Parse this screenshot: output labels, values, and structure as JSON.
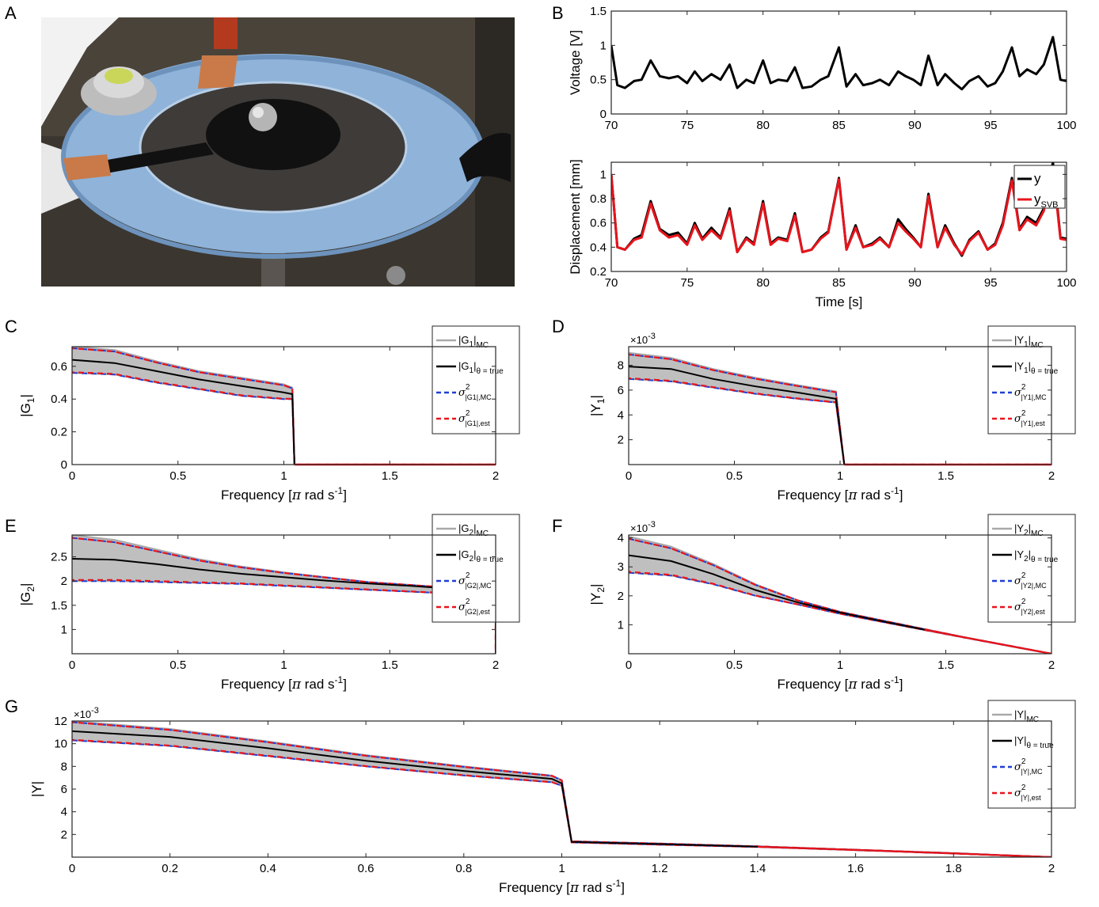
{
  "panel_letters": [
    "A",
    "B",
    "C",
    "D",
    "E",
    "F",
    "G"
  ],
  "photo": {
    "description_icon": "photo-of-ring-sensor-icon",
    "colors": {
      "ring": "#8fb3d9",
      "ink": "#111111",
      "copper": "#c97a48"
    }
  },
  "colors": {
    "measured": "#000000",
    "svb": "#e8141c",
    "mc_band": "#a9a9a9",
    "mc_dash": "#1f3fd6",
    "est_dash": "#e8141c",
    "fill": "#bfbfbf"
  },
  "chart_data": [
    {
      "id": "B-top",
      "type": "line",
      "ylabel": "Voltage [V]",
      "xlabel": "",
      "xlim": [
        70,
        100
      ],
      "ylim": [
        0,
        1.5
      ],
      "xticks": [
        "70",
        "75",
        "80",
        "85",
        "90",
        "95",
        "100"
      ],
      "yticks": [
        "0",
        "0.5",
        "1",
        "1.5"
      ],
      "series": [
        {
          "x": [
            70,
            70.4,
            70.9,
            71.5,
            72.0,
            72.6,
            73.2,
            73.8,
            74.4,
            75.0,
            75.5,
            76.0,
            76.6,
            77.2,
            77.8,
            78.3,
            78.9,
            79.4,
            80.0,
            80.5,
            81.0,
            81.6,
            82.1,
            82.6,
            83.2,
            83.8,
            84.3,
            85.0,
            85.5,
            86.1,
            86.6,
            87.2,
            87.7,
            88.3,
            88.9,
            89.4,
            89.9,
            90.4,
            90.9,
            91.5,
            92.0,
            92.6,
            93.1,
            93.6,
            94.2,
            94.8,
            95.3,
            95.8,
            96.4,
            96.9,
            97.4,
            98.0,
            98.5,
            99.1,
            99.6,
            100
          ],
          "y": [
            1.0,
            0.42,
            0.38,
            0.48,
            0.5,
            0.78,
            0.55,
            0.52,
            0.55,
            0.45,
            0.62,
            0.48,
            0.58,
            0.5,
            0.72,
            0.38,
            0.5,
            0.45,
            0.78,
            0.45,
            0.5,
            0.48,
            0.68,
            0.38,
            0.4,
            0.5,
            0.55,
            0.97,
            0.4,
            0.58,
            0.42,
            0.45,
            0.5,
            0.42,
            0.62,
            0.55,
            0.5,
            0.42,
            0.85,
            0.42,
            0.58,
            0.45,
            0.36,
            0.48,
            0.55,
            0.4,
            0.45,
            0.62,
            0.97,
            0.55,
            0.65,
            0.58,
            0.72,
            1.12,
            0.5,
            0.48
          ]
        }
      ]
    },
    {
      "id": "B-bottom",
      "type": "line",
      "ylabel": "Displacement [mm]",
      "xlabel": "Time [s]",
      "xlim": [
        70,
        100
      ],
      "ylim": [
        0.2,
        1.1
      ],
      "xticks": [
        "70",
        "75",
        "80",
        "85",
        "90",
        "95",
        "100"
      ],
      "yticks": [
        "0.2",
        "0.4",
        "0.6",
        "0.8",
        "1"
      ],
      "legend": {
        "placement": "top-right",
        "entries": [
          {
            "label": "y",
            "color": "#000000"
          },
          {
            "label": "y",
            "sub": "SVB",
            "color": "#e8141c"
          }
        ]
      },
      "series": [
        {
          "name": "y",
          "x": [
            70,
            70.4,
            70.9,
            71.5,
            72.0,
            72.6,
            73.2,
            73.8,
            74.4,
            75.0,
            75.5,
            76.0,
            76.6,
            77.2,
            77.8,
            78.3,
            78.9,
            79.4,
            80.0,
            80.5,
            81.0,
            81.6,
            82.1,
            82.6,
            83.2,
            83.8,
            84.3,
            85.0,
            85.5,
            86.1,
            86.6,
            87.2,
            87.7,
            88.3,
            88.9,
            89.4,
            89.9,
            90.4,
            90.9,
            91.5,
            92.0,
            92.6,
            93.1,
            93.6,
            94.2,
            94.8,
            95.3,
            95.8,
            96.4,
            96.9,
            97.4,
            98.0,
            98.5,
            99.1,
            99.6,
            100
          ],
          "y": [
            1.0,
            0.4,
            0.38,
            0.47,
            0.5,
            0.78,
            0.55,
            0.5,
            0.52,
            0.43,
            0.6,
            0.47,
            0.56,
            0.48,
            0.72,
            0.36,
            0.48,
            0.43,
            0.78,
            0.43,
            0.48,
            0.46,
            0.68,
            0.36,
            0.38,
            0.48,
            0.53,
            0.97,
            0.38,
            0.58,
            0.4,
            0.43,
            0.48,
            0.4,
            0.63,
            0.55,
            0.48,
            0.4,
            0.84,
            0.4,
            0.58,
            0.43,
            0.33,
            0.46,
            0.53,
            0.38,
            0.43,
            0.6,
            0.97,
            0.55,
            0.65,
            0.6,
            0.72,
            1.1,
            0.48,
            0.47
          ]
        },
        {
          "name": "y_SVB",
          "x": [
            70,
            70.4,
            70.9,
            71.5,
            72.0,
            72.6,
            73.2,
            73.8,
            74.4,
            75.0,
            75.5,
            76.0,
            76.6,
            77.2,
            77.8,
            78.3,
            78.9,
            79.4,
            80.0,
            80.5,
            81.0,
            81.6,
            82.1,
            82.6,
            83.2,
            83.8,
            84.3,
            85.0,
            85.5,
            86.1,
            86.6,
            87.2,
            87.7,
            88.3,
            88.9,
            89.4,
            89.9,
            90.4,
            90.9,
            91.5,
            92.0,
            92.6,
            93.1,
            93.6,
            94.2,
            94.8,
            95.3,
            95.8,
            96.4,
            96.9,
            97.4,
            98.0,
            98.5,
            99.1,
            99.6,
            100
          ],
          "y": [
            1.0,
            0.4,
            0.38,
            0.46,
            0.48,
            0.76,
            0.54,
            0.48,
            0.5,
            0.42,
            0.58,
            0.46,
            0.54,
            0.47,
            0.7,
            0.36,
            0.47,
            0.42,
            0.76,
            0.42,
            0.47,
            0.45,
            0.66,
            0.36,
            0.38,
            0.47,
            0.52,
            0.96,
            0.38,
            0.56,
            0.4,
            0.42,
            0.47,
            0.4,
            0.6,
            0.53,
            0.47,
            0.4,
            0.82,
            0.4,
            0.56,
            0.42,
            0.34,
            0.45,
            0.52,
            0.38,
            0.42,
            0.58,
            0.95,
            0.54,
            0.63,
            0.58,
            0.7,
            1.05,
            0.47,
            0.46
          ]
        }
      ]
    },
    {
      "id": "C",
      "type": "line",
      "ylabel": "|G1|",
      "xlabel": "Frequency [π rad s-1]",
      "xlim": [
        0,
        2
      ],
      "ylim": [
        0,
        0.72
      ],
      "xticks": [
        "0",
        "0.5",
        "1",
        "1.5",
        "2"
      ],
      "yticks": [
        "0",
        "0.2",
        "0.4",
        "0.6"
      ],
      "legend": {
        "placement": "top-right",
        "entries": [
          "|G1|MC",
          "|G1|θ = true",
          "σ2|G1|,MC",
          "σ2|G1|,est"
        ]
      },
      "band_x": [
        0,
        0.2,
        0.4,
        0.6,
        0.8,
        1.0,
        1.04
      ],
      "band_upper": [
        0.72,
        0.7,
        0.63,
        0.57,
        0.53,
        0.49,
        0.47
      ],
      "band_lower": [
        0.56,
        0.55,
        0.5,
        0.46,
        0.42,
        0.4,
        0.4
      ],
      "true_line": [
        0.64,
        0.62,
        0.57,
        0.52,
        0.48,
        0.44,
        0.43
      ],
      "drop_x": 1.05,
      "floor": 0
    },
    {
      "id": "D",
      "type": "line",
      "ylabel": "|Y1|",
      "xlabel": "Frequency [π rad s-1]",
      "exponent": "×10-3",
      "xlim": [
        0,
        2
      ],
      "ylim": [
        0,
        9.5
      ],
      "xticks": [
        "0",
        "0.5",
        "1",
        "1.5",
        "2"
      ],
      "yticks": [
        "2",
        "4",
        "6",
        "8"
      ],
      "legend": {
        "placement": "top-right",
        "entries": [
          "|Y1|MC",
          "|Y1|θ = true",
          "σ2|Y1|,MC",
          "σ2|Y1|,est"
        ]
      },
      "band_x": [
        0,
        0.2,
        0.4,
        0.6,
        0.8,
        0.98
      ],
      "band_upper": [
        9.0,
        8.6,
        7.7,
        7.0,
        6.4,
        5.9
      ],
      "band_lower": [
        6.9,
        6.7,
        6.2,
        5.7,
        5.3,
        5.0
      ],
      "true_line": [
        7.9,
        7.7,
        6.9,
        6.3,
        5.8,
        5.3
      ],
      "drop_x": 1.02,
      "floor": 0
    },
    {
      "id": "E",
      "type": "line",
      "ylabel": "|G2|",
      "xlabel": "Frequency [π rad s-1]",
      "xlim": [
        0,
        2
      ],
      "ylim": [
        0.5,
        2.95
      ],
      "xticks": [
        "0",
        "0.5",
        "1",
        "1.5",
        "2"
      ],
      "yticks": [
        "1",
        "1.5",
        "2",
        "2.5"
      ],
      "legend": {
        "placement": "top-right",
        "entries": [
          "|G2|MC",
          "|G2|θ = true",
          "σ2|G2|,MC",
          "σ2|G2|,est"
        ]
      },
      "band_x": [
        0,
        0.2,
        0.4,
        0.6,
        0.8,
        1.0,
        1.2,
        1.4,
        1.6,
        1.8,
        2.0
      ],
      "band_upper": [
        2.95,
        2.85,
        2.65,
        2.45,
        2.3,
        2.18,
        2.08,
        1.98,
        1.92,
        1.86,
        1.8
      ],
      "band_lower": [
        2.0,
        2.0,
        1.98,
        1.96,
        1.94,
        1.9,
        1.86,
        1.82,
        1.78,
        1.74,
        1.7
      ],
      "true_line": [
        2.46,
        2.44,
        2.35,
        2.24,
        2.15,
        2.08,
        2.01,
        1.95,
        1.9,
        1.84,
        1.78
      ],
      "drop_x": 2.0,
      "floor": 0.5
    },
    {
      "id": "F",
      "type": "line",
      "ylabel": "|Y2|",
      "xlabel": "Frequency [π rad s-1]",
      "exponent": "×10-3",
      "xlim": [
        0,
        2
      ],
      "ylim": [
        0,
        4.1
      ],
      "xticks": [
        "0",
        "0.5",
        "1",
        "1.5",
        "2"
      ],
      "yticks": [
        "1",
        "2",
        "3",
        "4"
      ],
      "legend": {
        "placement": "top-right",
        "entries": [
          "|Y2|MC",
          "|Y2|θ = true",
          "σ2|Y2|,MC",
          "σ2|Y2|,est"
        ]
      },
      "band_x": [
        0,
        0.2,
        0.4,
        0.6,
        0.8,
        1.0,
        1.2,
        1.4,
        1.6,
        1.8,
        2.0
      ],
      "band_upper": [
        4.05,
        3.7,
        3.1,
        2.4,
        1.85,
        1.45,
        1.15,
        0.85,
        0.55,
        0.28,
        0.0
      ],
      "band_lower": [
        2.8,
        2.7,
        2.4,
        2.0,
        1.7,
        1.38,
        1.1,
        0.82,
        0.54,
        0.27,
        0.0
      ],
      "true_line": [
        3.4,
        3.2,
        2.75,
        2.2,
        1.77,
        1.42,
        1.12,
        0.83,
        0.55,
        0.27,
        0.0
      ]
    },
    {
      "id": "G",
      "type": "line",
      "ylabel": "|Y|",
      "xlabel": "Frequency [π rad s-1]",
      "exponent": "×10-3",
      "xlim": [
        0,
        2
      ],
      "ylim": [
        0,
        12
      ],
      "xticks": [
        "0",
        "0.2",
        "0.4",
        "0.6",
        "0.8",
        "1",
        "1.2",
        "1.4",
        "1.6",
        "1.8",
        "2"
      ],
      "yticks": [
        "2",
        "4",
        "6",
        "8",
        "10",
        "12"
      ],
      "legend": {
        "placement": "top-right",
        "entries": [
          "|Y|MC",
          "|Y|θ = true",
          "σ2|Y|,MC",
          "σ2|Y|,est"
        ]
      },
      "band_x": [
        0,
        0.2,
        0.4,
        0.6,
        0.8,
        0.98,
        1.0,
        1.02,
        1.2,
        1.4,
        1.6,
        1.8,
        2.0
      ],
      "band_upper": [
        12.0,
        11.3,
        10.2,
        9.0,
        8.0,
        7.2,
        6.8,
        1.4,
        1.2,
        0.95,
        0.65,
        0.35,
        0.0
      ],
      "band_lower": [
        10.3,
        9.8,
        8.9,
        8.0,
        7.2,
        6.6,
        6.3,
        1.3,
        1.1,
        0.9,
        0.62,
        0.32,
        0.0
      ],
      "true_line": [
        11.1,
        10.6,
        9.6,
        8.5,
        7.6,
        6.9,
        6.5,
        1.35,
        1.15,
        0.92,
        0.64,
        0.33,
        0.0
      ]
    }
  ]
}
